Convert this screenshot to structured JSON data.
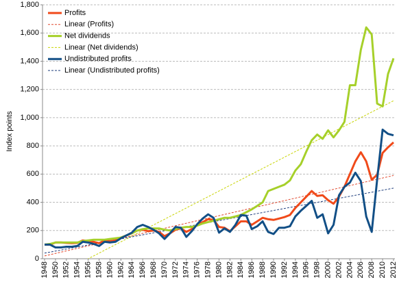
{
  "chart_data": {
    "type": "line",
    "y_label": "Index points",
    "x": [
      1948,
      1949,
      1950,
      1951,
      1952,
      1953,
      1954,
      1955,
      1956,
      1957,
      1958,
      1959,
      1960,
      1961,
      1962,
      1963,
      1964,
      1965,
      1966,
      1967,
      1968,
      1969,
      1970,
      1971,
      1972,
      1973,
      1974,
      1975,
      1976,
      1977,
      1978,
      1979,
      1980,
      1981,
      1982,
      1983,
      1984,
      1985,
      1986,
      1987,
      1988,
      1989,
      1990,
      1991,
      1992,
      1993,
      1994,
      1995,
      1996,
      1997,
      1998,
      1999,
      2000,
      2001,
      2002,
      2003,
      2004,
      2005,
      2006,
      2007,
      2008,
      2009,
      2010,
      2011,
      2012
    ],
    "xlim": [
      1948,
      2012
    ],
    "xticks": [
      1948,
      1950,
      1952,
      1954,
      1956,
      1958,
      1960,
      1962,
      1964,
      1966,
      1968,
      1970,
      1972,
      1974,
      1976,
      1978,
      1980,
      1982,
      1984,
      1986,
      1988,
      1990,
      1992,
      1994,
      1996,
      1998,
      2000,
      2002,
      2004,
      2006,
      2008,
      2010,
      2012
    ],
    "ylim": [
      0,
      1800
    ],
    "yticks": [
      0,
      200,
      400,
      600,
      800,
      {
        "value": 1000,
        "label": "1,000"
      },
      {
        "value": 1200,
        "label": "1,200"
      },
      {
        "value": 1400,
        "label": "1,400"
      },
      {
        "value": 1600,
        "label": "1,600"
      },
      {
        "value": 1800,
        "label": "1,800"
      }
    ],
    "grid": true,
    "legend": "top-left",
    "series": [
      {
        "name": "Profits",
        "color": "#f04a1a",
        "width": 3,
        "values": [
          100,
          100,
          115,
          115,
          112,
          110,
          112,
          130,
          125,
          120,
          110,
          130,
          125,
          130,
          150,
          165,
          180,
          200,
          205,
          195,
          200,
          190,
          160,
          180,
          205,
          215,
          190,
          210,
          240,
          260,
          280,
          275,
          225,
          220,
          195,
          230,
          265,
          265,
          240,
          265,
          290,
          280,
          275,
          285,
          295,
          310,
          360,
          400,
          440,
          480,
          445,
          450,
          415,
          390,
          440,
          510,
          600,
          690,
          755,
          690,
          560,
          595,
          750,
          790,
          825
        ]
      },
      {
        "name": "Linear (Profits)",
        "color": "#e0452a",
        "width": 1,
        "dashed": true,
        "x": [
          1948,
          2012
        ],
        "values": [
          20,
          590
        ]
      },
      {
        "name": "Net dividends",
        "color": "#a6d02a",
        "width": 3,
        "values": [
          100,
          105,
          115,
          115,
          115,
          115,
          115,
          125,
          130,
          135,
          135,
          135,
          140,
          145,
          150,
          165,
          180,
          200,
          210,
          215,
          215,
          215,
          205,
          200,
          210,
          220,
          225,
          225,
          235,
          250,
          260,
          270,
          280,
          290,
          290,
          300,
          310,
          330,
          350,
          375,
          400,
          480,
          495,
          510,
          525,
          555,
          625,
          670,
          760,
          840,
          880,
          850,
          910,
          860,
          910,
          970,
          1230,
          1230,
          1480,
          1640,
          1590,
          1100,
          1080,
          1310,
          1420
        ]
      },
      {
        "name": "Linear (Net dividends)",
        "color": "#c8d400",
        "width": 1,
        "dashed": true,
        "x": [
          1948,
          2012
        ],
        "values": [
          -160,
          1120
        ]
      },
      {
        "name": "Undistributed profits",
        "color": "#124f86",
        "width": 3,
        "values": [
          100,
          100,
          80,
          80,
          85,
          85,
          90,
          120,
          115,
          105,
          90,
          120,
          115,
          120,
          145,
          165,
          185,
          225,
          240,
          225,
          205,
          180,
          140,
          180,
          225,
          220,
          155,
          195,
          245,
          285,
          315,
          290,
          185,
          215,
          190,
          240,
          310,
          305,
          210,
          230,
          265,
          190,
          175,
          220,
          220,
          230,
          300,
          340,
          375,
          410,
          290,
          315,
          180,
          240,
          450,
          510,
          540,
          610,
          550,
          300,
          190,
          560,
          915,
          885,
          875
        ]
      },
      {
        "name": "Linear (Undistributed profits)",
        "color": "#1a3a7a",
        "width": 1,
        "dashed": true,
        "x": [
          1948,
          2012
        ],
        "values": [
          40,
          500
        ]
      }
    ]
  }
}
